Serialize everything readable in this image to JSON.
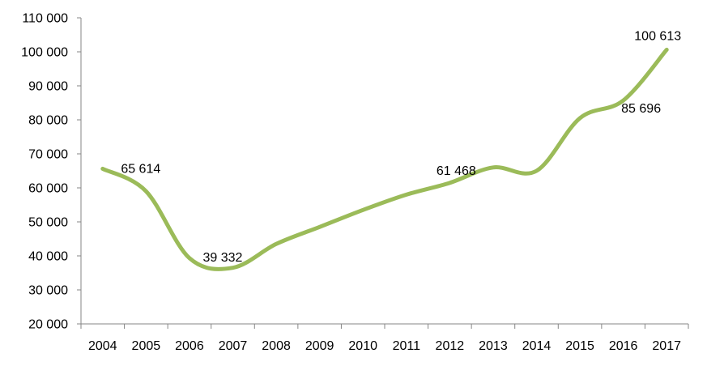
{
  "chart_data": {
    "type": "line",
    "title": "",
    "xlabel": "",
    "ylabel": "",
    "categories": [
      "2004",
      "2005",
      "2006",
      "2007",
      "2008",
      "2009",
      "2010",
      "2011",
      "2012",
      "2013",
      "2014",
      "2015",
      "2016",
      "2017"
    ],
    "series": [
      {
        "values": [
          65614,
          59000,
          39332,
          36500,
          43500,
          48500,
          53500,
          58000,
          61468,
          66000,
          65000,
          80500,
          85696,
          100613
        ]
      }
    ],
    "ylim": [
      20000,
      110000
    ],
    "ytick_step": 10000,
    "yticks": [
      "20 000",
      "30 000",
      "40 000",
      "50 000",
      "60 000",
      "70 000",
      "80 000",
      "90 000",
      "100 000",
      "110 000"
    ],
    "data_labels": [
      {
        "category": "2004",
        "text": "65 614"
      },
      {
        "category": "2006",
        "text": "39 332"
      },
      {
        "category": "2012",
        "text": "61 468"
      },
      {
        "category": "2016",
        "text": "85 696"
      },
      {
        "category": "2017",
        "text": "100 613"
      }
    ],
    "grid": false,
    "legend": "none",
    "line_color": "#9BBB59",
    "axis_color": "#868686",
    "text_color": "#000000"
  }
}
